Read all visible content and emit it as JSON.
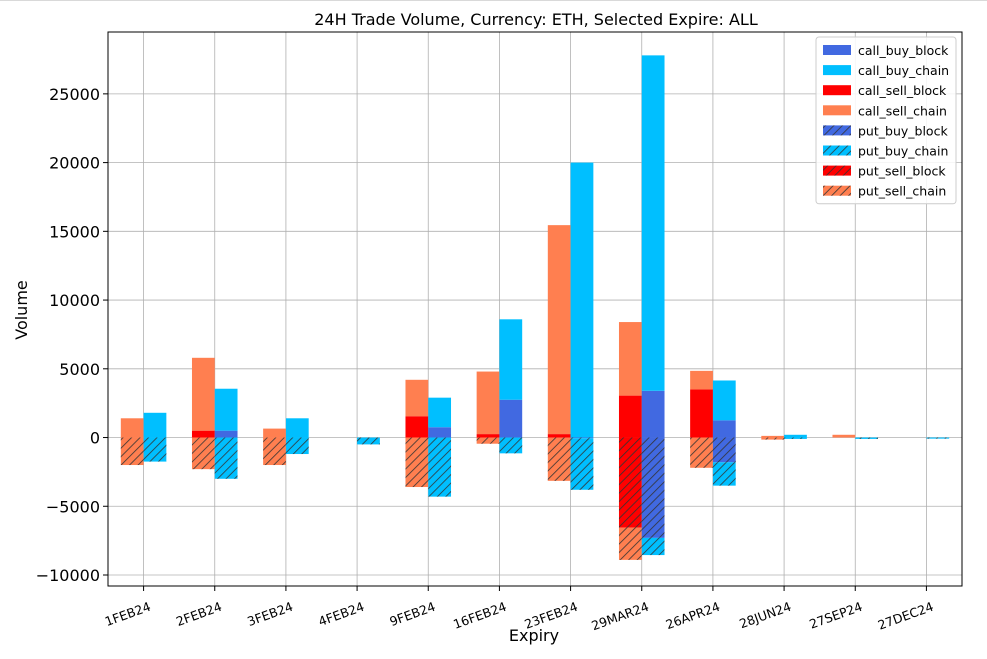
{
  "chart_data": {
    "type": "bar",
    "title": "24H Trade Volume, Currency: ETH, Selected Expire: ALL",
    "xlabel": "Expiry",
    "ylabel": "Volume",
    "ylim": [
      -10800,
      29500
    ],
    "yticks": [
      -10000,
      -5000,
      0,
      5000,
      10000,
      15000,
      20000,
      25000
    ],
    "grid": true,
    "legend_position": "top-right",
    "categories": [
      "1FEB24",
      "2FEB24",
      "3FEB24",
      "4FEB24",
      "9FEB24",
      "16FEB24",
      "23FEB24",
      "29MAR24",
      "26APR24",
      "28JUN24",
      "27SEP24",
      "27DEC24"
    ],
    "stack_groups": [
      {
        "name": "sell",
        "offset": "left",
        "positive": [
          "call_sell_block",
          "call_sell_chain"
        ],
        "negative": [
          "put_sell_block",
          "put_sell_chain"
        ]
      },
      {
        "name": "buy",
        "offset": "right",
        "positive": [
          "call_buy_block",
          "call_buy_chain"
        ],
        "negative": [
          "put_buy_block",
          "put_buy_chain"
        ]
      }
    ],
    "series": [
      {
        "name": "call_buy_block",
        "color": "#4169e1",
        "hatch": false,
        "values": [
          0,
          500,
          0,
          0,
          750,
          2750,
          0,
          3400,
          1250,
          0,
          0,
          0
        ]
      },
      {
        "name": "call_buy_chain",
        "color": "#00bfff",
        "hatch": false,
        "values": [
          1800,
          3050,
          1400,
          0,
          2150,
          5850,
          20000,
          24400,
          2900,
          200,
          0,
          0
        ]
      },
      {
        "name": "call_sell_block",
        "color": "#ff0000",
        "hatch": false,
        "values": [
          0,
          500,
          0,
          0,
          1550,
          250,
          250,
          3050,
          3500,
          0,
          0,
          0
        ]
      },
      {
        "name": "call_sell_chain",
        "color": "#ff7f50",
        "hatch": false,
        "values": [
          1400,
          5300,
          650,
          0,
          2650,
          4550,
          15200,
          5350,
          1350,
          120,
          200,
          0
        ]
      },
      {
        "name": "put_buy_block",
        "color": "#4169e1",
        "hatch": true,
        "values": [
          0,
          0,
          0,
          0,
          0,
          0,
          -50,
          -7300,
          -1800,
          0,
          0,
          0
        ]
      },
      {
        "name": "put_buy_chain",
        "color": "#00bfff",
        "hatch": true,
        "values": [
          -1750,
          -3000,
          -1200,
          -500,
          -4300,
          -1150,
          -3750,
          -1250,
          -1700,
          -100,
          -100,
          -80
        ]
      },
      {
        "name": "put_sell_block",
        "color": "#ff0000",
        "hatch": true,
        "values": [
          0,
          0,
          0,
          0,
          0,
          0,
          0,
          -6550,
          0,
          0,
          0,
          0
        ]
      },
      {
        "name": "put_sell_chain",
        "color": "#ff7f50",
        "hatch": true,
        "values": [
          -2000,
          -2300,
          -2000,
          0,
          -3600,
          -450,
          -3150,
          -2350,
          -2200,
          -150,
          0,
          0
        ]
      }
    ]
  }
}
